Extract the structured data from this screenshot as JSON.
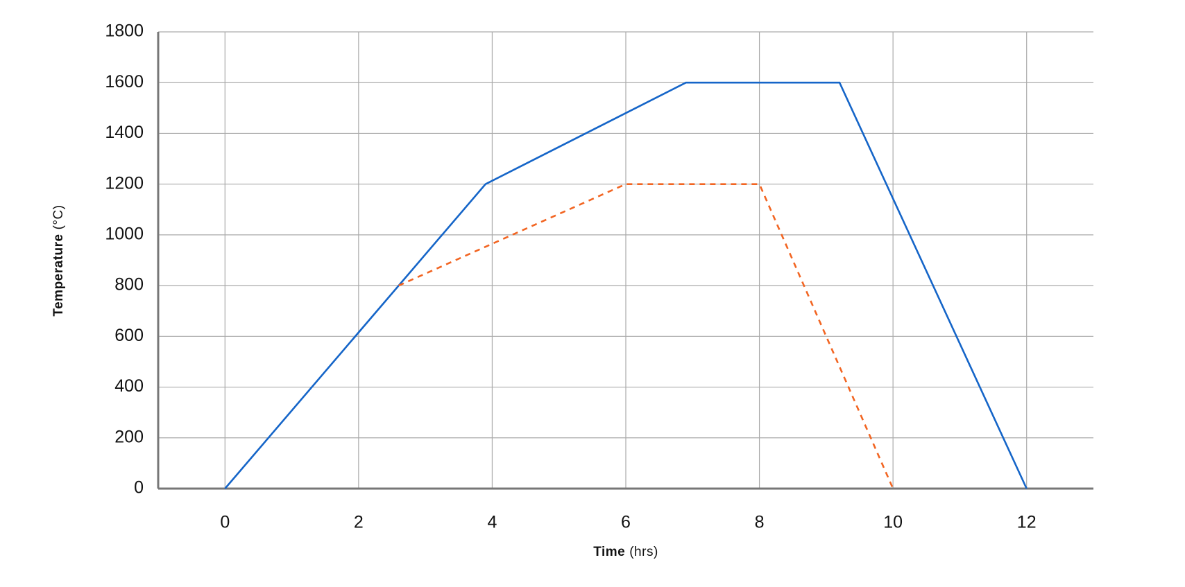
{
  "chart_data": {
    "type": "line",
    "x_label": {
      "bold": "Time",
      "unit": "(hrs)"
    },
    "y_label": {
      "bold": "Temperature",
      "unit": "(°C)"
    },
    "xlim": [
      -1,
      13
    ],
    "xticks": [
      0,
      2,
      4,
      6,
      8,
      10,
      12
    ],
    "ylim": [
      0,
      1800
    ],
    "yticks": [
      0,
      200,
      400,
      600,
      800,
      1000,
      1200,
      1400,
      1600,
      1800
    ],
    "grid": true,
    "series": [
      {
        "color": "#1565c8",
        "dashed": false,
        "x": [
          0,
          3.9,
          6.9,
          9.2,
          12
        ],
        "values": [
          0,
          1200,
          1600,
          1600,
          0
        ]
      },
      {
        "color": "#f26522",
        "dashed": true,
        "x": [
          2.6,
          6,
          8,
          10
        ],
        "values": [
          800,
          1200,
          1200,
          0
        ]
      }
    ]
  }
}
